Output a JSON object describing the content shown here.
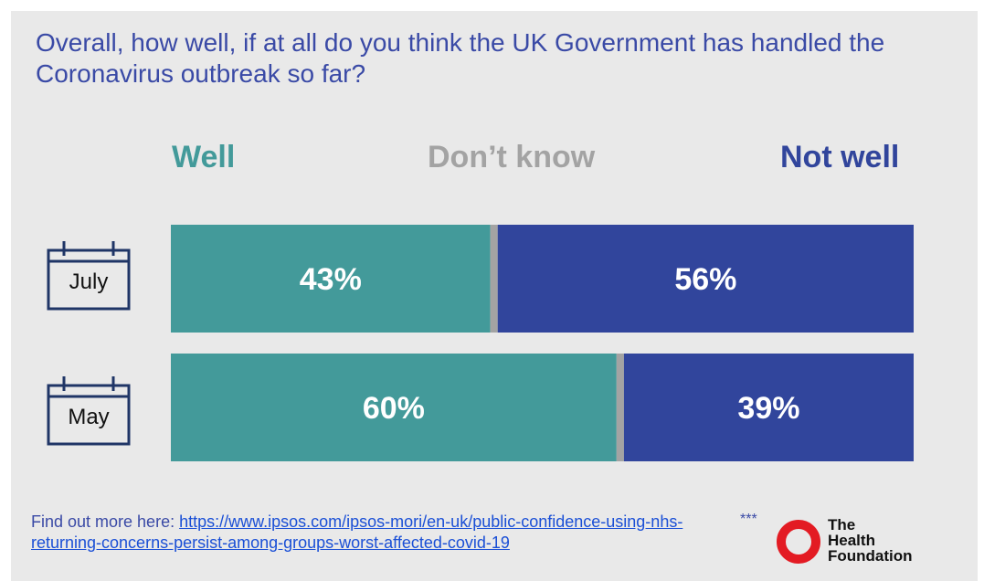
{
  "title": "Overall, how well, if at all do you think the UK Government has handled the Coronavirus outbreak so far?",
  "colors": {
    "well": "#439a9a",
    "dont_know": "#a3a3a3",
    "not_well": "#31459c",
    "title": "#3a4aa6",
    "logo_ring": "#e31b23"
  },
  "chart_data": {
    "type": "bar",
    "orientation": "horizontal-stacked",
    "categories": [
      "July",
      "May"
    ],
    "series": [
      {
        "name": "Well",
        "values": [
          43,
          60
        ],
        "labels": [
          "43%",
          "60%"
        ]
      },
      {
        "name": "Don’t know",
        "values": [
          1,
          1
        ],
        "labels": [
          "",
          ""
        ]
      },
      {
        "name": "Not well",
        "values": [
          56,
          39
        ],
        "labels": [
          "56%",
          "39%"
        ]
      }
    ],
    "legend_placement": "top",
    "grid": false
  },
  "footer": {
    "prefix": "Find out more here: ",
    "link_text": "https://www.ipsos.com/ipsos-mori/en-uk/public-confidence-using-nhs-returning-concerns-persist-among-groups-worst-affected-covid-19",
    "stars": "***"
  },
  "logo": {
    "line1": "The",
    "line2": "Health",
    "line3": "Foundation",
    "icon": "ring-logo-icon"
  },
  "icons": {
    "row_icon": "calendar-icon"
  }
}
